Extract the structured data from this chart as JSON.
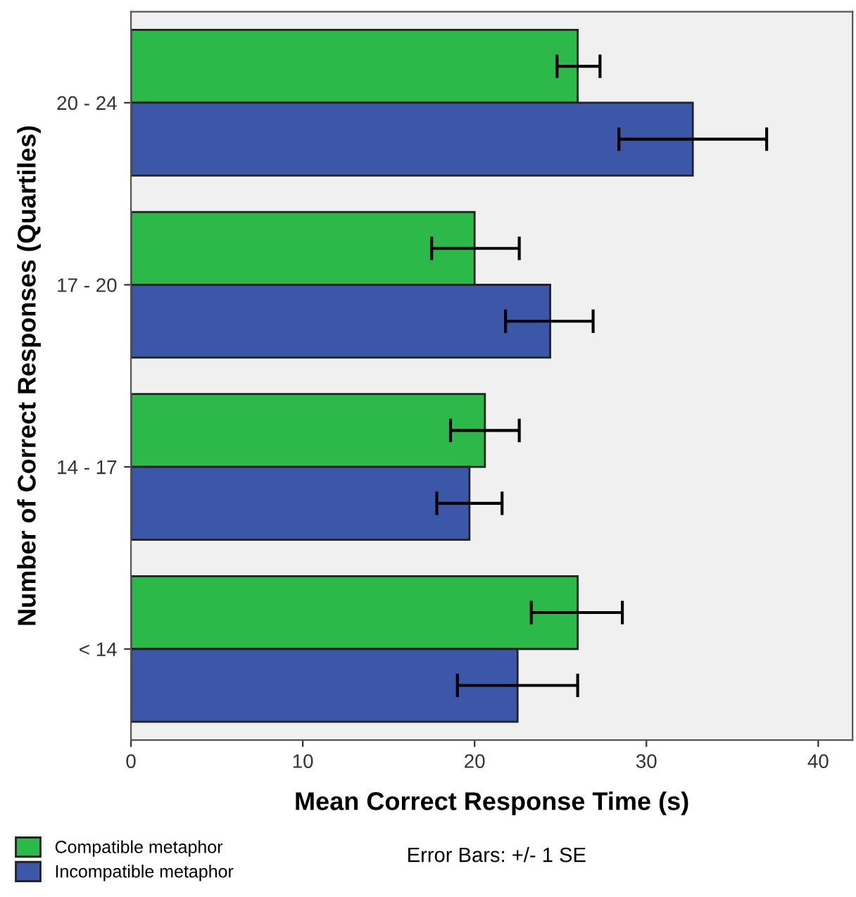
{
  "chart_data": {
    "type": "bar",
    "orientation": "horizontal",
    "xlabel": "Mean Correct Response Time (s)",
    "ylabel": "Number of Correct Responses (Quartiles)",
    "categories": [
      "20 - 24",
      "17 - 20",
      "14 - 17",
      "< 14"
    ],
    "series": [
      {
        "name": "Compatible metaphor",
        "color": "#2db84a",
        "values": [
          26.0,
          20.0,
          20.6,
          26.0
        ],
        "errors": [
          [
            24.8,
            27.3
          ],
          [
            17.5,
            22.6
          ],
          [
            18.6,
            22.6
          ],
          [
            23.3,
            28.6
          ]
        ]
      },
      {
        "name": "Incompatible metaphor",
        "color": "#3c57a8",
        "values": [
          32.7,
          24.4,
          19.7,
          22.5
        ],
        "errors": [
          [
            28.4,
            37.0
          ],
          [
            21.8,
            26.9
          ],
          [
            17.8,
            21.6
          ],
          [
            19.0,
            26.0
          ]
        ]
      }
    ],
    "xlim": [
      0,
      42
    ],
    "xticks": [
      0,
      10,
      20,
      30,
      40
    ],
    "grid": false,
    "legend": "bottom left",
    "annotations": [
      "Error Bars: +/- 1 SE"
    ]
  }
}
